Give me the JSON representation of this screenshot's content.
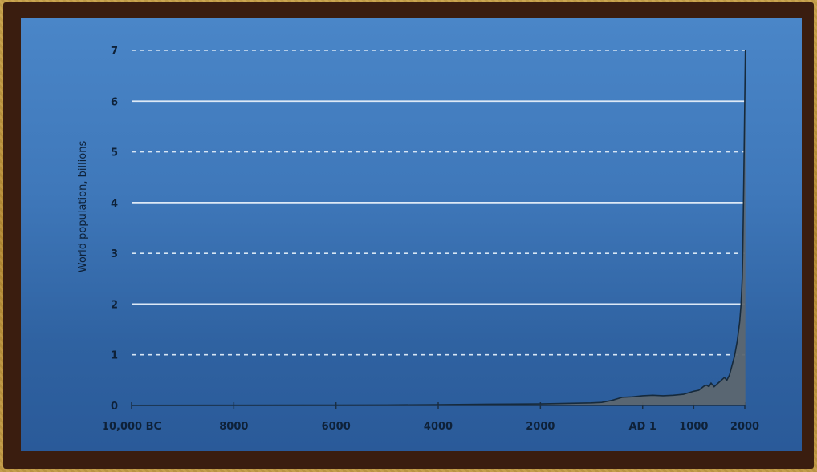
{
  "chart_data": {
    "type": "area",
    "title": "",
    "xlabel": "",
    "ylabel": "World population, billions",
    "ylim": [
      0,
      7
    ],
    "xlim": [
      -10000,
      2000
    ],
    "grid": true,
    "y_ticks": [
      {
        "value": 0,
        "label": "0"
      },
      {
        "value": 1,
        "label": "1"
      },
      {
        "value": 2,
        "label": "2"
      },
      {
        "value": 3,
        "label": "3"
      },
      {
        "value": 4,
        "label": "4"
      },
      {
        "value": 5,
        "label": "5"
      },
      {
        "value": 6,
        "label": "6"
      },
      {
        "value": 7,
        "label": "7"
      }
    ],
    "x_ticks": [
      {
        "value": -10000,
        "label": "10,000 BC"
      },
      {
        "value": -8000,
        "label": "8000"
      },
      {
        "value": -6000,
        "label": "6000"
      },
      {
        "value": -4000,
        "label": "4000"
      },
      {
        "value": -2000,
        "label": "2000"
      },
      {
        "value": 1,
        "label": "AD 1"
      },
      {
        "value": 1000,
        "label": "1000"
      },
      {
        "value": 2000,
        "label": "2000"
      }
    ],
    "series": [
      {
        "x": [
          -10000,
          -8000,
          -6000,
          -5000,
          -4000,
          -3000,
          -2000,
          -1500,
          -1000,
          -800,
          -600,
          -400,
          -200,
          1,
          200,
          400,
          600,
          800,
          1000,
          1100,
          1200,
          1250,
          1300,
          1340,
          1400,
          1500,
          1600,
          1650,
          1700,
          1750,
          1800,
          1850,
          1900,
          1927,
          1950,
          1960,
          1974,
          1987,
          1999,
          2011
        ],
        "values": [
          0.004,
          0.005,
          0.007,
          0.01,
          0.015,
          0.025,
          0.03,
          0.04,
          0.05,
          0.06,
          0.1,
          0.16,
          0.17,
          0.19,
          0.2,
          0.19,
          0.2,
          0.22,
          0.28,
          0.3,
          0.38,
          0.4,
          0.37,
          0.44,
          0.37,
          0.46,
          0.55,
          0.5,
          0.6,
          0.79,
          0.98,
          1.26,
          1.65,
          2.0,
          2.52,
          3.0,
          4.0,
          5.0,
          6.0,
          7.0
        ]
      }
    ]
  }
}
